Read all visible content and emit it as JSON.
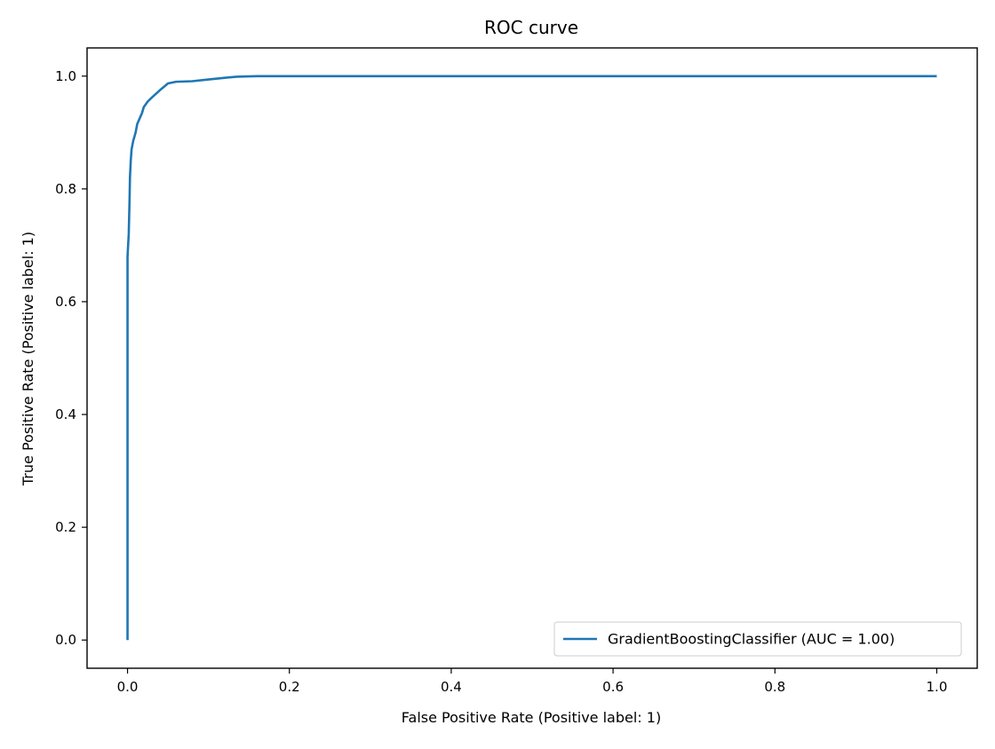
{
  "chart_data": {
    "type": "line",
    "title": "ROC curve",
    "xlabel": "False Positive Rate (Positive label: 1)",
    "ylabel": "True Positive Rate (Positive label: 1)",
    "xlim": [
      -0.05,
      1.05
    ],
    "ylim": [
      -0.05,
      1.05
    ],
    "x_ticks": [
      0.0,
      0.2,
      0.4,
      0.6,
      0.8,
      1.0
    ],
    "x_tick_labels": [
      "0.0",
      "0.2",
      "0.4",
      "0.6",
      "0.8",
      "1.0"
    ],
    "y_ticks": [
      0.0,
      0.2,
      0.4,
      0.6,
      0.8,
      1.0
    ],
    "y_tick_labels": [
      "0.0",
      "0.2",
      "0.4",
      "0.6",
      "0.8",
      "1.0"
    ],
    "grid": false,
    "legend_position": "lower-right",
    "series": [
      {
        "name": "GradientBoostingClassifier (AUC = 1.00)",
        "color": "#1f77b4",
        "x": [
          0.0,
          0.0,
          0.0,
          0.0015,
          0.0025,
          0.003,
          0.004,
          0.005,
          0.007,
          0.01,
          0.012,
          0.015,
          0.018,
          0.02,
          0.025,
          0.03,
          0.04,
          0.05,
          0.06,
          0.08,
          0.1,
          0.12,
          0.135,
          0.16,
          0.2,
          0.3,
          0.5,
          0.8,
          1.0
        ],
        "y": [
          0.0,
          0.58,
          0.68,
          0.72,
          0.78,
          0.82,
          0.85,
          0.87,
          0.885,
          0.9,
          0.915,
          0.925,
          0.935,
          0.945,
          0.955,
          0.962,
          0.975,
          0.987,
          0.99,
          0.991,
          0.994,
          0.997,
          0.999,
          1.0,
          1.0,
          1.0,
          1.0,
          1.0,
          1.0
        ]
      }
    ]
  }
}
